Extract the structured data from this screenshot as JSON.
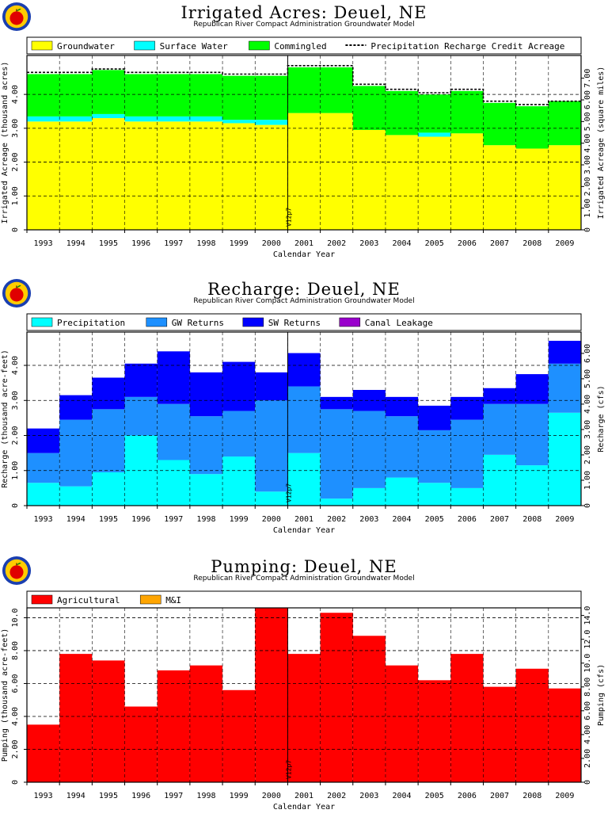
{
  "chart_data": [
    {
      "type": "bar",
      "title": "Irrigated Acres: Deuel, NE",
      "subtitle": "Republican River Compact Administration Groundwater Model",
      "xlabel": "Calendar Year",
      "ylabel": "Irrigated Acreage (thousand acres)",
      "ylabel_right": "Irrigated Acreage (square miles)",
      "ylim": [
        0,
        5.15
      ],
      "ylim_right": [
        0,
        8.05
      ],
      "yticks": [
        0,
        1.0,
        2.0,
        3.0,
        4.0
      ],
      "yticks_right": [
        0,
        1.0,
        2.0,
        3.0,
        4.0,
        5.0,
        6.0,
        7.0
      ],
      "ytick_labels": [
        "0",
        "1.00",
        "2.00",
        "3.00",
        "4.00"
      ],
      "ytick_labels_right": [
        "0",
        "1.00",
        "2.00",
        "3.00",
        "4.00",
        "5.00",
        "6.00",
        "7.00"
      ],
      "categories": [
        "1993",
        "1994",
        "1995",
        "1996",
        "1997",
        "1998",
        "1999",
        "2000",
        "2001",
        "2002",
        "2003",
        "2004",
        "2005",
        "2006",
        "2007",
        "2008",
        "2009"
      ],
      "marker_text": "V12p7",
      "stacked": true,
      "series": [
        {
          "name": "Groundwater",
          "color": "#ffff00",
          "values": [
            3.2,
            3.2,
            3.3,
            3.2,
            3.2,
            3.2,
            3.15,
            3.1,
            3.45,
            3.45,
            2.95,
            2.8,
            2.75,
            2.85,
            2.5,
            2.4,
            2.5
          ]
        },
        {
          "name": "Surface Water",
          "color": "#00ffff",
          "values": [
            0.15,
            0.15,
            0.12,
            0.15,
            0.15,
            0.15,
            0.1,
            0.15,
            0.0,
            0.0,
            0.0,
            0.0,
            0.12,
            0.0,
            0.0,
            0.0,
            0.0
          ]
        },
        {
          "name": "Commingled",
          "color": "#00ff00",
          "values": [
            1.25,
            1.25,
            1.3,
            1.25,
            1.25,
            1.25,
            1.3,
            1.3,
            1.35,
            1.35,
            1.3,
            1.3,
            1.13,
            1.25,
            1.25,
            1.25,
            1.3
          ]
        }
      ],
      "line": {
        "name": "Precipitation Recharge Credit Acreage",
        "values": [
          4.65,
          4.65,
          4.75,
          4.65,
          4.65,
          4.65,
          4.6,
          4.6,
          4.85,
          4.85,
          4.3,
          4.15,
          4.05,
          4.15,
          3.8,
          3.7,
          3.8
        ]
      }
    },
    {
      "type": "bar",
      "title": "Recharge: Deuel, NE",
      "subtitle": "Republican River Compact Administration Groundwater Model",
      "xlabel": "Calendar Year",
      "ylabel": "Recharge (thousand acre-feet)",
      "ylabel_right": "Recharge (cfs)",
      "ylim": [
        0,
        4.95
      ],
      "ylim_right": [
        0,
        6.84
      ],
      "yticks": [
        0,
        1.0,
        2.0,
        3.0,
        4.0
      ],
      "yticks_right": [
        0,
        1.0,
        2.0,
        3.0,
        4.0,
        5.0,
        6.0
      ],
      "ytick_labels": [
        "0",
        "1.00",
        "2.00",
        "3.00",
        "4.00"
      ],
      "ytick_labels_right": [
        "0",
        "1.00",
        "2.00",
        "3.00",
        "4.00",
        "5.00",
        "6.00"
      ],
      "categories": [
        "1993",
        "1994",
        "1995",
        "1996",
        "1997",
        "1998",
        "1999",
        "2000",
        "2001",
        "2002",
        "2003",
        "2004",
        "2005",
        "2006",
        "2007",
        "2008",
        "2009"
      ],
      "marker_text": "V12p7",
      "stacked": true,
      "series": [
        {
          "name": "Precipitation",
          "color": "#00ffff",
          "values": [
            0.65,
            0.55,
            0.95,
            2.0,
            1.3,
            0.9,
            1.4,
            0.4,
            1.5,
            0.2,
            0.5,
            0.8,
            0.65,
            0.5,
            1.45,
            1.15,
            2.65
          ]
        },
        {
          "name": "GW Returns",
          "color": "#1e90ff",
          "values": [
            0.85,
            1.9,
            1.8,
            1.1,
            1.6,
            1.65,
            1.3,
            2.6,
            1.9,
            2.55,
            2.2,
            1.75,
            1.5,
            1.95,
            1.45,
            1.75,
            1.4
          ]
        },
        {
          "name": "SW Returns",
          "color": "#0000ff",
          "values": [
            0.7,
            0.7,
            0.9,
            0.95,
            1.5,
            1.25,
            1.4,
            0.8,
            0.95,
            0.35,
            0.6,
            0.55,
            0.7,
            0.65,
            0.45,
            0.85,
            0.65
          ]
        },
        {
          "name": "Canal Leakage",
          "color": "#9900cc",
          "values": [
            0,
            0,
            0,
            0,
            0,
            0,
            0,
            0,
            0,
            0,
            0,
            0,
            0,
            0,
            0,
            0,
            0
          ]
        }
      ]
    },
    {
      "type": "bar",
      "title": "Pumping: Deuel, NE",
      "subtitle": "Republican River Compact Administration Groundwater Model",
      "xlabel": "Calendar Year",
      "ylabel": "Pumping (thousand acre-feet)",
      "ylabel_right": "Pumping (cfs)",
      "ylim": [
        0,
        10.6
      ],
      "ylim_right": [
        0,
        14.64
      ],
      "yticks": [
        0,
        2.0,
        4.0,
        6.0,
        8.0,
        10.0
      ],
      "yticks_right": [
        0,
        2.0,
        4.0,
        6.0,
        8.0,
        10.0,
        12.0,
        14.0
      ],
      "ytick_labels": [
        "0",
        "2.00",
        "4.00",
        "6.00",
        "8.00",
        "10.0"
      ],
      "ytick_labels_right": [
        "0",
        "2.00",
        "4.00",
        "6.00",
        "8.00",
        "10.0",
        "12.0",
        "14.0"
      ],
      "categories": [
        "1993",
        "1994",
        "1995",
        "1996",
        "1997",
        "1998",
        "1999",
        "2000",
        "2001",
        "2002",
        "2003",
        "2004",
        "2005",
        "2006",
        "2007",
        "2008",
        "2009"
      ],
      "marker_text": "V12p7",
      "stacked": true,
      "series": [
        {
          "name": "Agricultural",
          "color": "#ff0000",
          "values": [
            3.5,
            7.8,
            7.4,
            4.6,
            6.8,
            7.1,
            5.6,
            10.6,
            7.8,
            10.3,
            8.9,
            7.1,
            6.2,
            7.8,
            5.8,
            6.9,
            5.7
          ]
        },
        {
          "name": "M&I",
          "color": "#ffa500",
          "values": [
            0,
            0,
            0,
            0,
            0,
            0,
            0,
            0,
            0,
            0,
            0,
            0,
            0,
            0,
            0,
            0,
            0
          ]
        }
      ]
    }
  ]
}
